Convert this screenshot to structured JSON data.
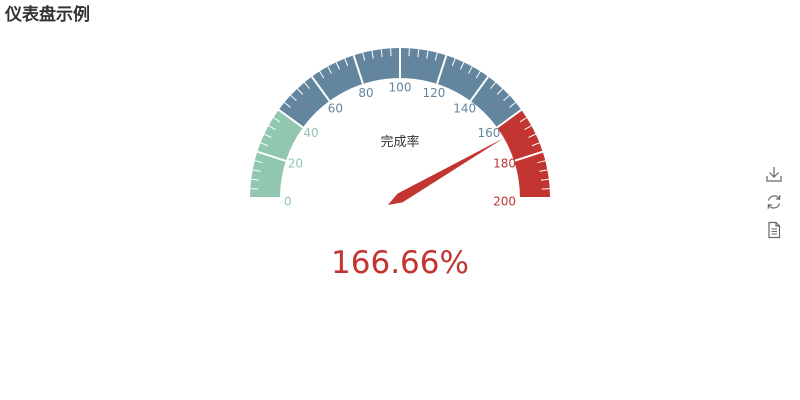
{
  "title": "仪表盘示例",
  "chart_data": {
    "type": "gauge",
    "series_name": "完成率",
    "min": 0,
    "max": 200,
    "value": 166.66,
    "value_label": "166.66%",
    "split_number": 10,
    "axis_labels": [
      "0",
      "20",
      "40",
      "60",
      "80",
      "100",
      "120",
      "140",
      "160",
      "180",
      "200"
    ],
    "color_bands": [
      {
        "to": 0.2,
        "color": "#91c7ae"
      },
      {
        "to": 0.8,
        "color": "#63869e"
      },
      {
        "to": 1.0,
        "color": "#c23531"
      }
    ]
  },
  "toolbox": {
    "save_icon": "download-icon",
    "restore_icon": "refresh-icon",
    "dataview_icon": "document-icon"
  }
}
